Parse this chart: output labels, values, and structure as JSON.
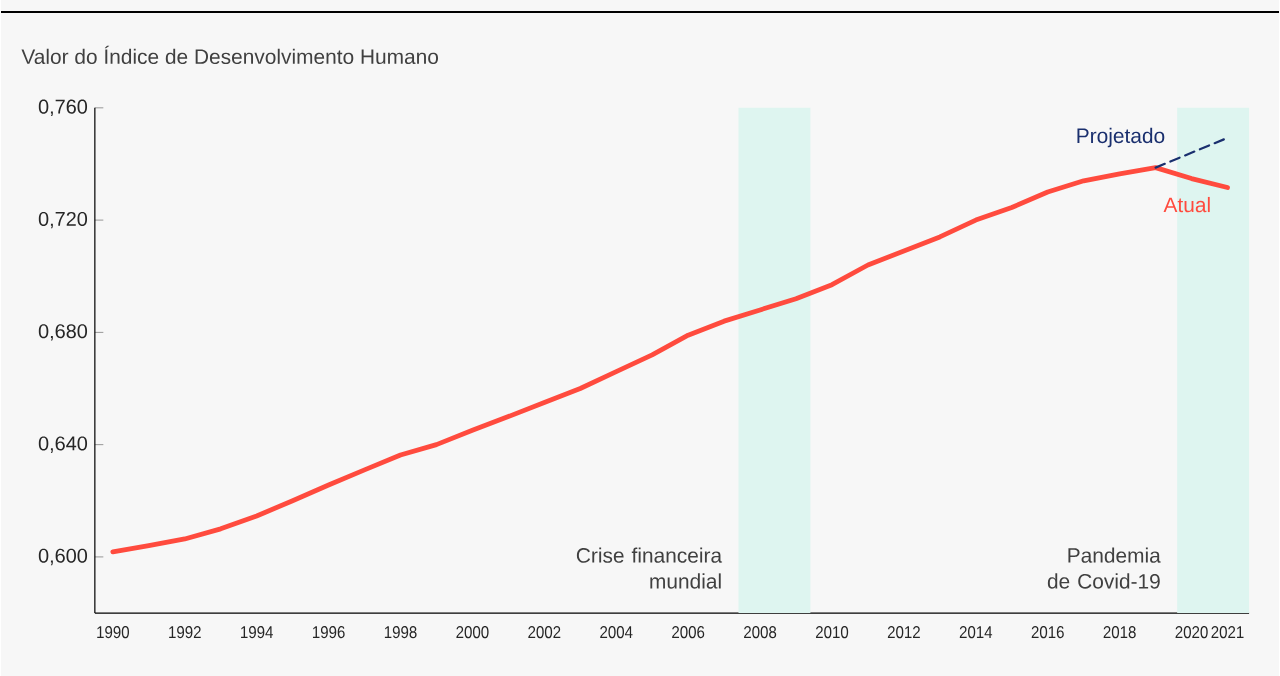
{
  "chart_data": {
    "type": "line",
    "ylabel": "Valor do Índice de Desenvolvimento Humano",
    "x": [
      1990,
      1991,
      1992,
      1993,
      1994,
      1995,
      1996,
      1997,
      1998,
      1999,
      2000,
      2001,
      2002,
      2003,
      2004,
      2005,
      2006,
      2007,
      2008,
      2009,
      2010,
      2011,
      2012,
      2013,
      2014,
      2015,
      2016,
      2017,
      2018,
      2019,
      2020,
      2021
    ],
    "series": [
      {
        "name": "Atual",
        "color": "#ff4b3e",
        "values": [
          0.6018,
          0.604,
          0.6064,
          0.61,
          0.6146,
          0.62,
          0.6256,
          0.631,
          0.6363,
          0.64,
          0.6451,
          0.65,
          0.655,
          0.66,
          0.666,
          0.672,
          0.679,
          0.684,
          0.688,
          0.692,
          0.697,
          0.704,
          0.709,
          0.714,
          0.72,
          0.7245,
          0.73,
          0.734,
          0.7365,
          0.7387,
          0.7348,
          0.7316
        ]
      },
      {
        "name": "Projetado",
        "color": "#1a2f6e",
        "line_style": "dashed",
        "x": [
          2019,
          2021
        ],
        "values": [
          0.7387,
          0.7493
        ]
      }
    ],
    "xlim": [
      1989.5,
      2021.6
    ],
    "ylim": [
      0.58,
      0.76
    ],
    "xticks": [
      1990,
      1992,
      1994,
      1996,
      1998,
      2000,
      2002,
      2004,
      2006,
      2008,
      2010,
      2012,
      2014,
      2016,
      2018,
      2020,
      2021
    ],
    "yticks": [
      {
        "value": 0.6,
        "label": "0,600"
      },
      {
        "value": 0.64,
        "label": "0,640"
      },
      {
        "value": 0.68,
        "label": "0,680"
      },
      {
        "value": 0.72,
        "label": "0,720"
      },
      {
        "value": 0.76,
        "label": "0,760"
      }
    ],
    "bands": [
      {
        "axis": "x",
        "from": 2007.4,
        "to": 2009.4,
        "label": "Crise financeira mundial",
        "color": "#def5f0"
      },
      {
        "axis": "x",
        "from": 2019.6,
        "to": 2021.6,
        "label": "Pandemia de Covid-19",
        "color": "#def5f0"
      }
    ],
    "grid": false,
    "legend": false,
    "marker": "none",
    "line_style": "solid"
  }
}
